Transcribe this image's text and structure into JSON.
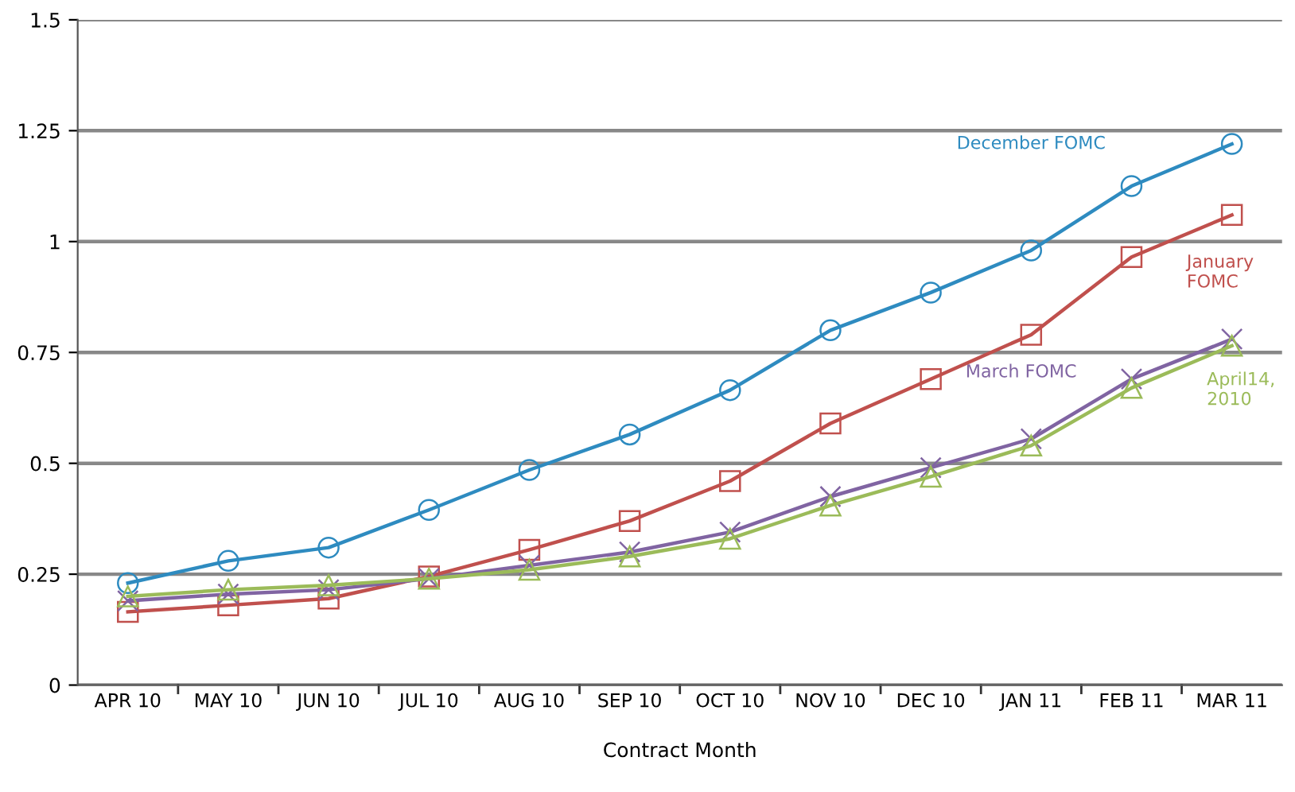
{
  "chart_data": {
    "type": "line",
    "xlabel": "Contract Month",
    "categories": [
      "APR 10",
      "MAY 10",
      "JUN 10",
      "JUL 10",
      "AUG 10",
      "SEP 10",
      "OCT 10",
      "NOV 10",
      "DEC 10",
      "JAN 11",
      "FEB 11",
      "MAR 11"
    ],
    "series": [
      {
        "name": "December FOMC",
        "color": "#2e8bc0",
        "marker": "circle",
        "values": [
          0.23,
          0.28,
          0.31,
          0.395,
          0.485,
          0.565,
          0.665,
          0.8,
          0.885,
          0.98,
          1.125,
          1.22
        ]
      },
      {
        "name": "January\nFOMC",
        "color": "#c0504d",
        "marker": "square",
        "values": [
          0.165,
          0.18,
          0.195,
          0.245,
          0.305,
          0.37,
          0.46,
          0.59,
          0.69,
          0.79,
          0.965,
          1.06
        ]
      },
      {
        "name": "March FOMC",
        "color": "#8064a2",
        "marker": "cross",
        "values": [
          0.19,
          0.205,
          0.215,
          0.24,
          0.27,
          0.3,
          0.345,
          0.425,
          0.49,
          0.555,
          0.69,
          0.78
        ]
      },
      {
        "name": "April14,\n2010",
        "color": "#9bbb59",
        "marker": "triangle",
        "values": [
          0.2,
          0.215,
          0.225,
          0.24,
          0.26,
          0.29,
          0.33,
          0.405,
          0.47,
          0.54,
          0.67,
          0.765
        ]
      }
    ],
    "ylim": [
      0,
      1.5
    ],
    "yticks": [
      0,
      0.25,
      0.5,
      0.75,
      1,
      1.25,
      1.5
    ],
    "grid": "y",
    "line_style": "solid",
    "legend": false
  }
}
